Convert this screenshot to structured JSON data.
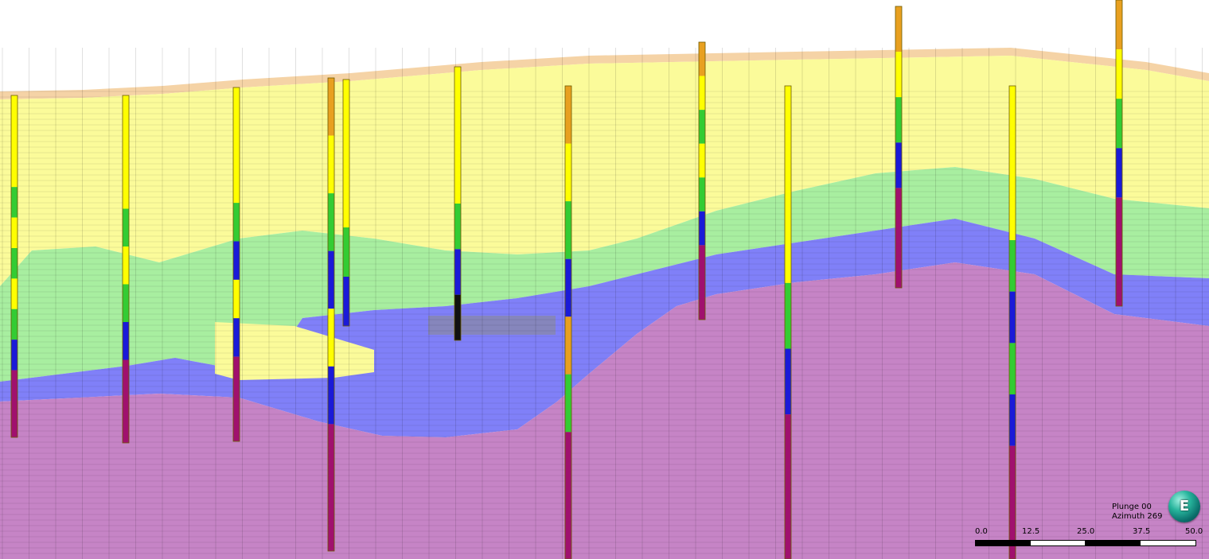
{
  "view": {
    "orientation": {
      "plunge_label": "Plunge",
      "plunge_value": "00",
      "azimuth_label": "Azimuth",
      "azimuth_value": "269"
    },
    "scale": {
      "ticks": [
        "0.0",
        "12.5",
        "25.0",
        "37.5",
        "50.0"
      ]
    },
    "compass": {
      "letter": "E",
      "icon": "compass-globe-icon"
    }
  },
  "legend_colors": {
    "overburden_orange": "#f3c890",
    "oxide_yellow": "#fbfb9a",
    "transition_green": "#a8eea0",
    "supergene_blue": "#8080f8",
    "primary_magenta": "#c684c6",
    "void_grey": "#8a8a8a",
    "hole_yellow": "#ffff00",
    "hole_green": "#33cc33",
    "hole_blue": "#1a1ad8",
    "hole_magenta": "#a0106e"
  },
  "drillholes": [
    {
      "id": "dh-1",
      "intervals": [
        "yellow",
        "green",
        "yellow",
        "green",
        "yellow",
        "green",
        "blue",
        "magenta"
      ]
    },
    {
      "id": "dh-2",
      "intervals": [
        "yellow",
        "green",
        "yellow",
        "green",
        "blue",
        "magenta"
      ]
    },
    {
      "id": "dh-3",
      "intervals": [
        "yellow",
        "green",
        "blue",
        "yellow",
        "blue",
        "magenta"
      ]
    },
    {
      "id": "dh-4",
      "intervals": [
        "orange",
        "yellow",
        "green",
        "blue",
        "yellow",
        "blue",
        "magenta"
      ]
    },
    {
      "id": "dh-5",
      "intervals": [
        "yellow",
        "green",
        "blue"
      ]
    },
    {
      "id": "dh-6",
      "intervals": [
        "yellow",
        "green",
        "blue",
        "black"
      ]
    },
    {
      "id": "dh-7",
      "intervals": [
        "orange",
        "yellow",
        "green",
        "blue",
        "orange",
        "green",
        "magenta"
      ]
    },
    {
      "id": "dh-8",
      "intervals": [
        "orange",
        "yellow",
        "green",
        "yellow",
        "green",
        "blue",
        "magenta"
      ]
    },
    {
      "id": "dh-9",
      "intervals": [
        "yellow",
        "green",
        "blue",
        "magenta"
      ]
    },
    {
      "id": "dh-10",
      "intervals": [
        "orange",
        "yellow",
        "green",
        "blue",
        "magenta"
      ]
    },
    {
      "id": "dh-11",
      "intervals": [
        "yellow",
        "green",
        "blue",
        "green",
        "blue",
        "magenta"
      ]
    },
    {
      "id": "dh-12",
      "intervals": [
        "orange",
        "yellow",
        "green",
        "blue",
        "magenta"
      ]
    }
  ]
}
